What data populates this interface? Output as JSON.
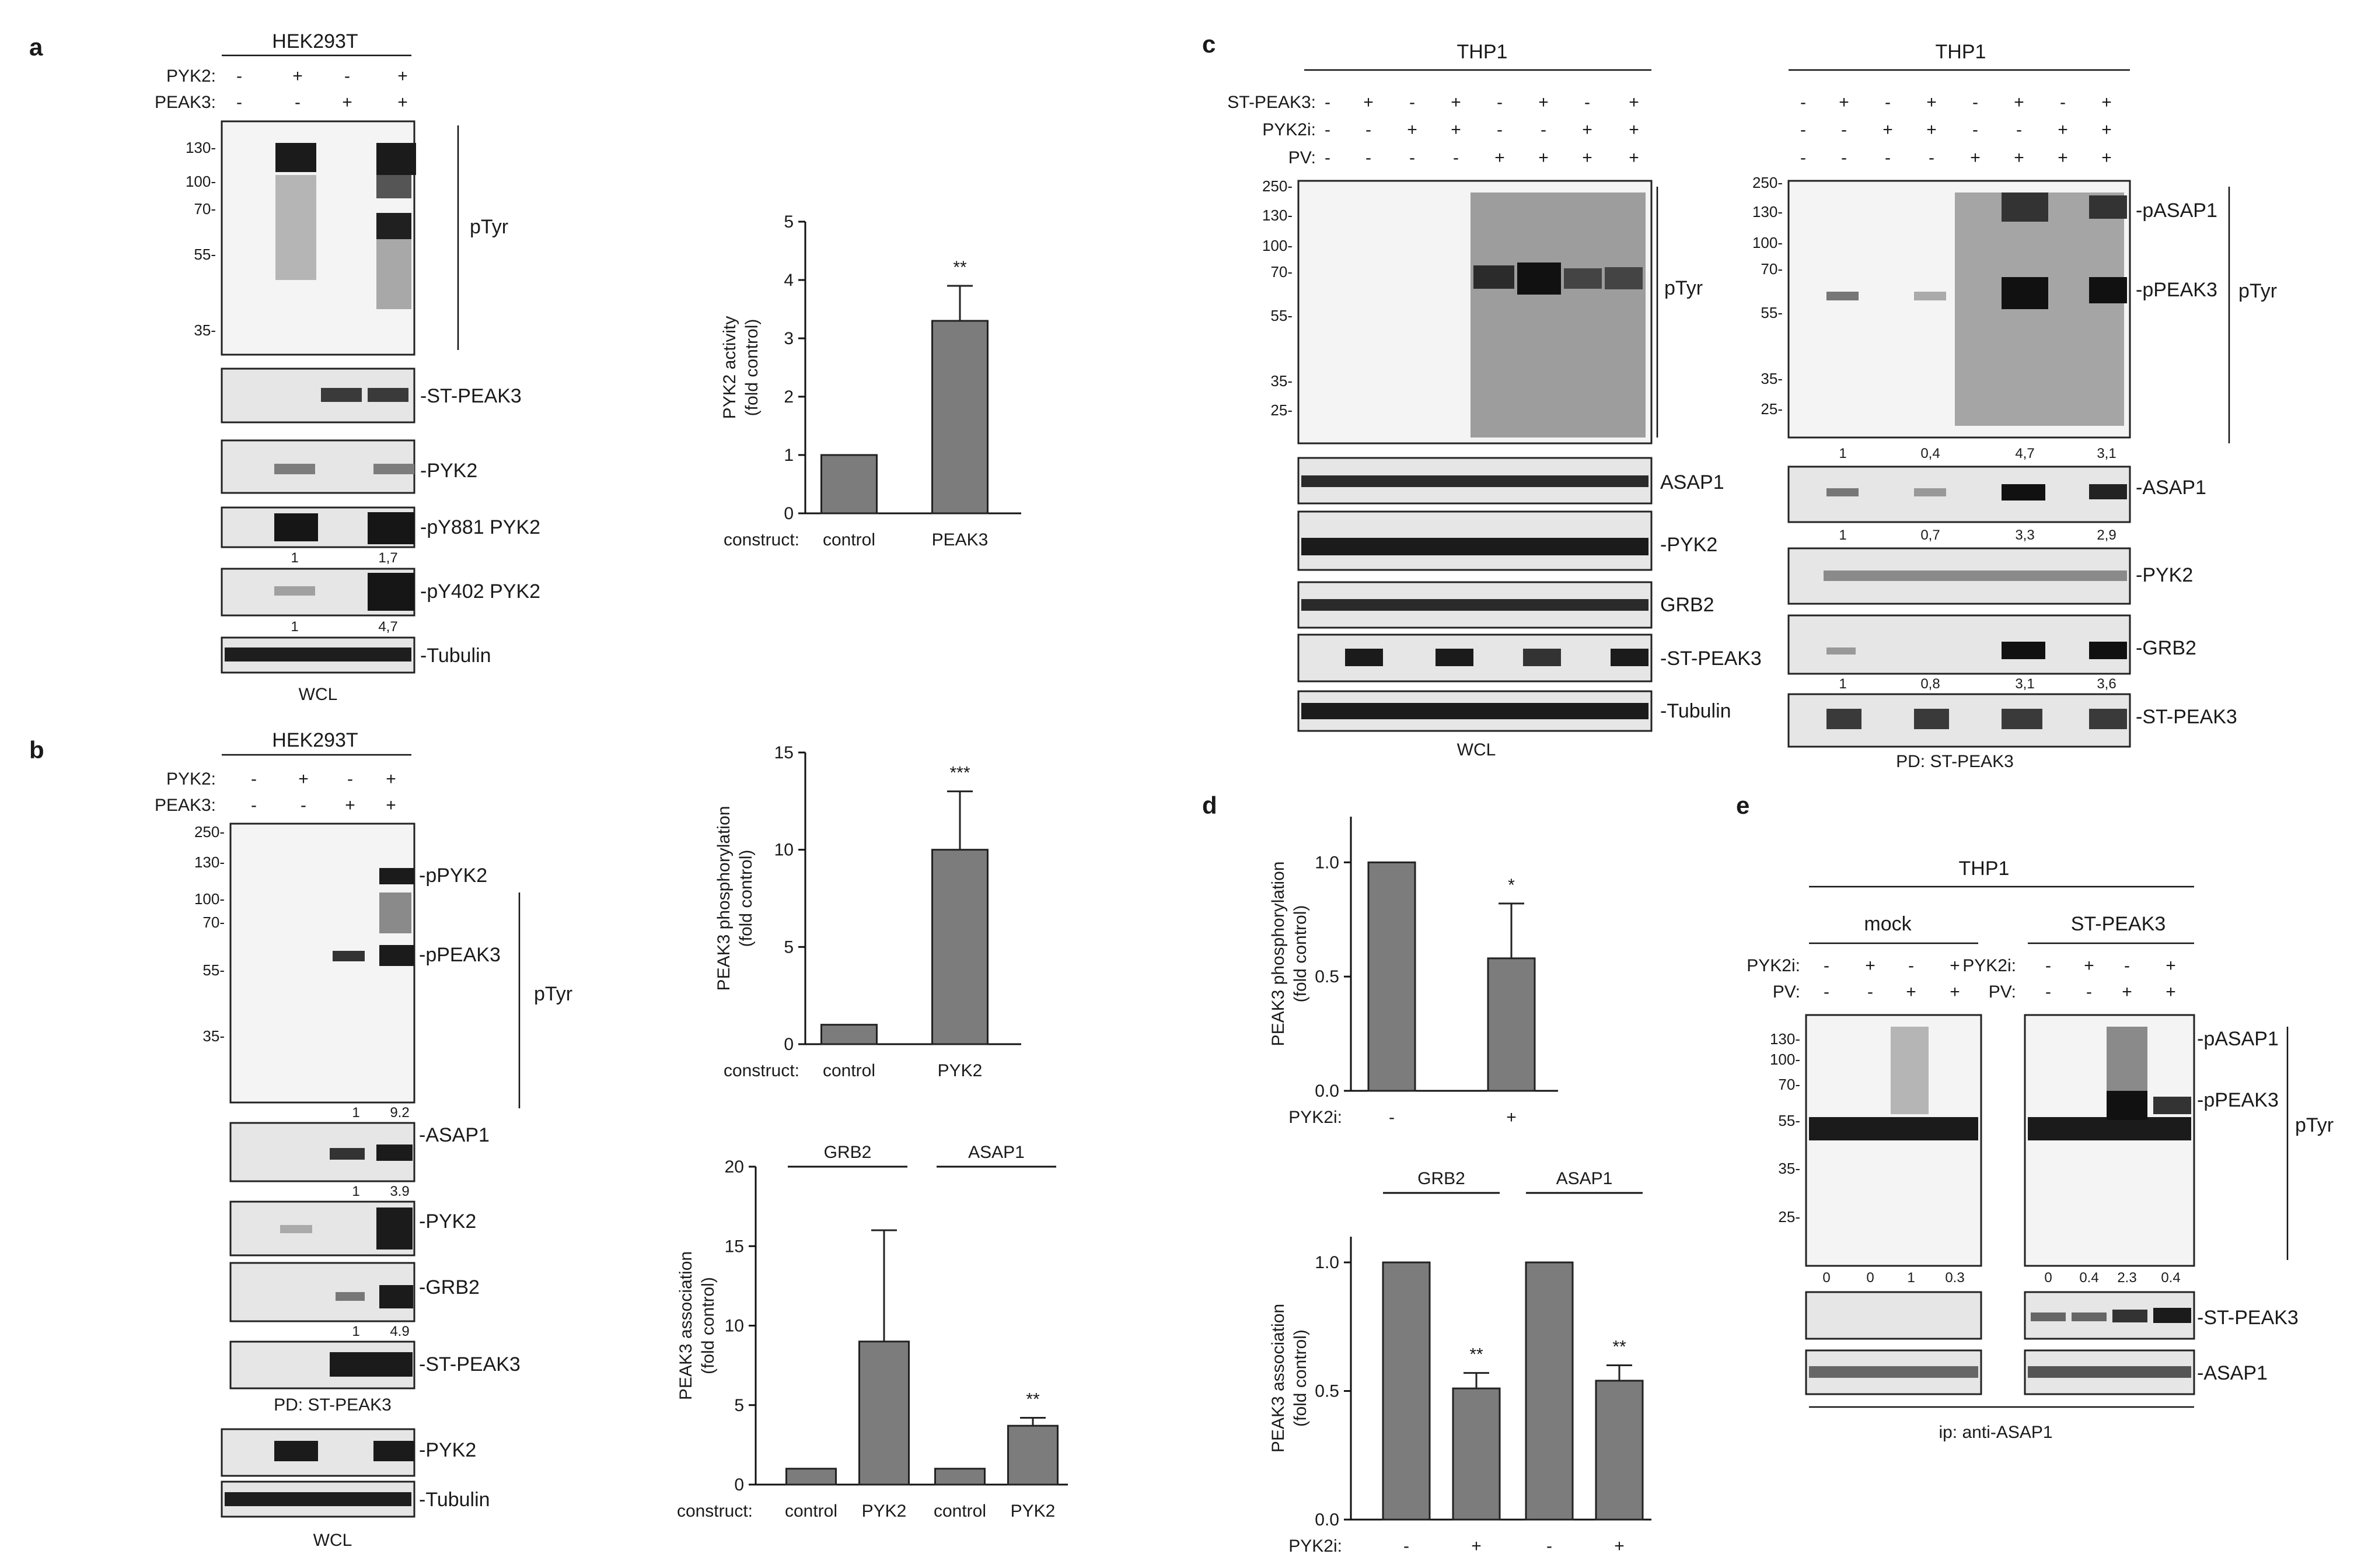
{
  "panels": {
    "a": {
      "label": "a",
      "cell_line": "HEK293T",
      "row_labels": [
        "PYK2:",
        "PEAK3:"
      ],
      "row1": [
        "-",
        "+",
        "-",
        "+"
      ],
      "row2": [
        "-",
        "-",
        "+",
        "+"
      ],
      "mw_markers": [
        "130-",
        "100-",
        "70-",
        "55-",
        "35-"
      ],
      "blot_labels": [
        "pTyr",
        "-ST-PEAK3",
        "-PYK2",
        "-pY881 PYK2",
        "-pY402 PYK2",
        "-Tubulin"
      ],
      "quant_pY881": [
        "1",
        "1,7"
      ],
      "quant_pY402": [
        "1",
        "4,7"
      ],
      "footer": "WCL"
    },
    "b": {
      "label": "b",
      "cell_line": "HEK293T",
      "row_labels": [
        "PYK2:",
        "PEAK3:"
      ],
      "row1": [
        "-",
        "+",
        "-",
        "+"
      ],
      "row2": [
        "-",
        "-",
        "+",
        "+"
      ],
      "mw_markers": [
        "250-",
        "130-",
        "100-",
        "70-",
        "55-",
        "35-"
      ],
      "band_labels": [
        "-pPYK2",
        "-pPEAK3",
        "pTyr"
      ],
      "quant_ptyr": [
        "1",
        "9.2"
      ],
      "blot_labels": [
        "-ASAP1",
        "-PYK2",
        "-GRB2",
        "-ST-PEAK3"
      ],
      "quant_asap1": [
        "1",
        "3.9"
      ],
      "quant_grb2": [
        "1",
        "4.9"
      ],
      "pd_label": "PD: ST-PEAK3",
      "wcl_labels": [
        "-PYK2",
        "-Tubulin"
      ],
      "footer": "WCL"
    },
    "c": {
      "label": "c",
      "left_title": "THP1",
      "right_title": "THP1",
      "row_labels": [
        "ST-PEAK3:",
        "PYK2i:",
        "PV:"
      ],
      "row1": [
        "-",
        "+",
        "-",
        "+",
        "-",
        "+",
        "-",
        "+"
      ],
      "row2": [
        "-",
        "-",
        "+",
        "+",
        "-",
        "-",
        "+",
        "+"
      ],
      "row3": [
        "-",
        "-",
        "-",
        "-",
        "+",
        "+",
        "+",
        "+"
      ],
      "mw_markers": [
        "250-",
        "130-",
        "100-",
        "70-",
        "55-",
        "35-",
        "25-"
      ],
      "left_labels": [
        "pTyr",
        "ASAP1",
        "-PYK2",
        "GRB2",
        "-ST-PEAK3",
        "-Tubulin"
      ],
      "left_footer": "WCL",
      "right_band_labels": [
        "-pASAP1",
        "-pPEAK3",
        "pTyr"
      ],
      "quant_ptyr": [
        "1",
        "0,4",
        "4,7",
        "3,1"
      ],
      "right_labels": [
        "-ASAP1",
        "-PYK2",
        "-GRB2",
        "-ST-PEAK3"
      ],
      "quant_asap1": [
        "1",
        "0,7",
        "3,3",
        "2,9"
      ],
      "quant_grb2": [
        "1",
        "0,8",
        "3,1",
        "3,6"
      ],
      "right_footer": "PD: ST-PEAK3"
    },
    "d": {
      "label": "d",
      "xlabel_prefix": "PYK2i:",
      "ticks_top": [
        "-",
        "+"
      ],
      "ticks_bottom": [
        "-",
        "+",
        "-",
        "+"
      ],
      "groups": [
        "GRB2",
        "ASAP1"
      ],
      "sig_top": "*",
      "sig_bottom": [
        "**",
        "**"
      ]
    },
    "e": {
      "label": "e",
      "cell_line": "THP1",
      "group_labels": [
        "mock",
        "ST-PEAK3"
      ],
      "row_labels": [
        "PYK2i:",
        "PV:"
      ],
      "row1": [
        "-",
        "+",
        "-",
        "+"
      ],
      "row2": [
        "-",
        "-",
        "+",
        "+"
      ],
      "mw_markers": [
        "130-",
        "100-",
        "70-",
        "55-",
        "35-",
        "25-"
      ],
      "band_labels": [
        "-pASAP1",
        "-pPEAK3",
        "pTyr"
      ],
      "quant_mock": [
        "0",
        "0",
        "1",
        "0.3"
      ],
      "quant_peak3": [
        "0",
        "0.4",
        "2.3",
        "0.4"
      ],
      "blot_labels": [
        "-ST-PEAK3",
        "-ASAP1"
      ],
      "footer": "ip: anti-ASAP1"
    }
  },
  "chart_data": [
    {
      "type": "bar",
      "panel": "a",
      "categories": [
        "control",
        "PEAK3"
      ],
      "values": [
        1,
        3.3
      ],
      "errors": [
        0,
        0.6
      ],
      "ylabel": "PYK2 activity\n(fold control)",
      "xlabel": "construct:",
      "ylim": [
        0,
        5
      ],
      "yticks": [
        "0",
        "1",
        "2",
        "3",
        "4",
        "5"
      ],
      "annotations": [
        "**"
      ]
    },
    {
      "type": "bar",
      "panel": "b",
      "categories": [
        "control",
        "PYK2"
      ],
      "values": [
        1,
        10
      ],
      "errors": [
        0,
        3
      ],
      "ylabel": "PEAK3 phosphorylation\n(fold control)",
      "xlabel": "construct:",
      "ylim": [
        0,
        15
      ],
      "yticks": [
        "0",
        "5",
        "10",
        "15"
      ],
      "annotations": [
        "***"
      ]
    },
    {
      "type": "bar",
      "panel": "b",
      "groups": [
        "GRB2",
        "ASAP1"
      ],
      "categories": [
        "control",
        "PYK2",
        "control",
        "PYK2"
      ],
      "values": [
        1,
        9,
        1,
        3.7
      ],
      "errors": [
        0,
        7,
        0,
        0.5
      ],
      "ylabel": "PEAK3 association\n(fold control)",
      "xlabel": "construct:",
      "ylim": [
        0,
        20
      ],
      "yticks": [
        "0",
        "5",
        "10",
        "15",
        "20"
      ],
      "annotations": [
        "**"
      ]
    },
    {
      "type": "bar",
      "panel": "d",
      "categories": [
        "-",
        "+"
      ],
      "values": [
        1.0,
        0.58
      ],
      "errors": [
        0,
        0.24
      ],
      "ylabel": "PEAK3 phosphorylation\n(fold control)",
      "xlabel": "PYK2i:",
      "ylim": [
        0,
        1.2
      ],
      "yticks": [
        "0.0",
        "0.5",
        "1.0"
      ],
      "annotations": [
        "*"
      ]
    },
    {
      "type": "bar",
      "panel": "d",
      "groups": [
        "GRB2",
        "ASAP1"
      ],
      "categories": [
        "-",
        "+",
        "-",
        "+"
      ],
      "values": [
        1.0,
        0.51,
        1.0,
        0.54
      ],
      "errors": [
        0,
        0.06,
        0,
        0.06
      ],
      "ylabel": "PEAK3 association\n(fold control)",
      "xlabel": "PYK2i:",
      "ylim": [
        0,
        1.1
      ],
      "yticks": [
        "0.0",
        "0.5",
        "1.0"
      ],
      "annotations": [
        "**",
        "**"
      ]
    }
  ]
}
